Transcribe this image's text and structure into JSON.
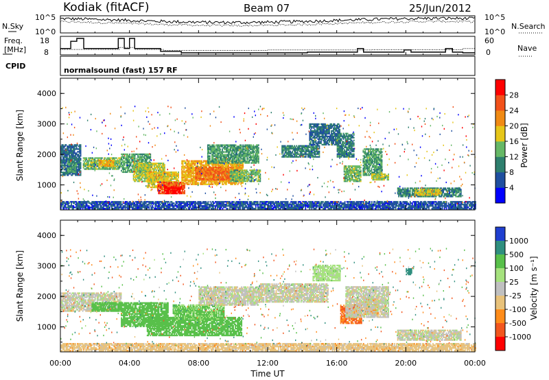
{
  "header": {
    "station": "Kodiak (fitACF)",
    "beam": "Beam 07",
    "date": "25/Jun/2012",
    "cpid_text": "normalsound (fast) 157 RF"
  },
  "strips": {
    "nsky_label": "N.Sky",
    "nsearch_label": "N.Search",
    "noise_ticks_left": [
      "10^5",
      "10^0"
    ],
    "noise_ticks_right": [
      "10^5",
      "10^0"
    ],
    "freq_label_line1": "Freq.",
    "freq_label_line2": "[MHz]",
    "freq_ticks": [
      "18",
      "8"
    ],
    "nave_label": "Nave",
    "nave_ticks": [
      "60",
      "0"
    ],
    "cpid_label": "CPID",
    "freq_steps": [
      [
        0.0,
        11
      ],
      [
        0.6,
        16
      ],
      [
        0.95,
        18
      ],
      [
        1.35,
        11
      ],
      [
        3.35,
        18
      ],
      [
        3.7,
        11
      ],
      [
        4.0,
        18
      ],
      [
        4.3,
        11
      ],
      [
        5.8,
        9
      ],
      [
        7.0,
        8
      ],
      [
        14.3,
        8.5
      ],
      [
        17.2,
        11
      ],
      [
        17.55,
        8.5
      ],
      [
        19.9,
        10
      ],
      [
        20.3,
        8.5
      ],
      [
        21.8,
        8.5
      ],
      [
        22.3,
        11
      ],
      [
        22.7,
        8.5
      ],
      [
        23.3,
        8
      ],
      [
        24.0,
        8
      ]
    ],
    "nave_steps": [
      [
        0.0,
        14
      ],
      [
        3.4,
        22
      ],
      [
        4.3,
        14
      ],
      [
        6.0,
        10
      ],
      [
        12.0,
        12
      ],
      [
        18.0,
        13
      ],
      [
        23.3,
        18
      ],
      [
        24.0,
        18
      ]
    ]
  },
  "power_colorbar": {
    "label": "Power [dB]",
    "ticks": [
      "4",
      "8",
      "12",
      "16",
      "20",
      "24",
      "28"
    ],
    "colors": [
      "#0000ff",
      "#1f4fa0",
      "#2e7f6e",
      "#66b866",
      "#e6c619",
      "#f08a14",
      "#f2511a",
      "#ff0000"
    ]
  },
  "velocity_colorbar": {
    "label": "Velocity [m s⁻¹]",
    "ticks": [
      "1000",
      "500",
      "100",
      "25",
      "-25",
      "-100",
      "-500",
      "-1000"
    ],
    "colors": [
      "#1f3fd0",
      "#2f8f7f",
      "#58c04a",
      "#a6e27e",
      "#c0c0c0",
      "#e8c27b",
      "#ff8c1a",
      "#f2561e",
      "#ff0000"
    ]
  },
  "axes": {
    "ylabel": "Slant Range [km]",
    "yticks": [
      "1000",
      "2000",
      "3000",
      "4000"
    ],
    "xticks": [
      "00:00",
      "04:00",
      "08:00",
      "12:00",
      "16:00",
      "20:00",
      "00:00"
    ],
    "xlabel": "Time UT"
  },
  "chart_data": {
    "type": "heatmap",
    "title": "Kodiak (fitACF) Beam 07 25/Jun/2012",
    "xlabel": "Time UT",
    "ylabel": "Slant Range [km]",
    "xlim": [
      0,
      24
    ],
    "ylim": [
      180,
      4500
    ],
    "panels": [
      {
        "quantity": "Power [dB]",
        "clim": [
          0,
          30
        ],
        "echo_regions": [
          {
            "t": [
              0.0,
              1.2
            ],
            "r": [
              1300,
              2300
            ],
            "v": 8
          },
          {
            "t": [
              0.4,
              0.9
            ],
            "r": [
              1400,
              1800
            ],
            "v": 12
          },
          {
            "t": [
              1.3,
              3.5
            ],
            "r": [
              1500,
              1900
            ],
            "v": 14
          },
          {
            "t": [
              2.2,
              3.1
            ],
            "r": [
              1600,
              1800
            ],
            "v": 20
          },
          {
            "t": [
              3.5,
              5.2
            ],
            "r": [
              1400,
              2000
            ],
            "v": 12
          },
          {
            "t": [
              4.2,
              6.0
            ],
            "r": [
              1100,
              1700
            ],
            "v": 16
          },
          {
            "t": [
              5.0,
              6.8
            ],
            "r": [
              900,
              1400
            ],
            "v": 18
          },
          {
            "t": [
              5.6,
              7.2
            ],
            "r": [
              700,
              1100
            ],
            "v": 26
          },
          {
            "t": [
              6.0,
              7.0
            ],
            "r": [
              700,
              950
            ],
            "v": 30
          },
          {
            "t": [
              7.0,
              10.6
            ],
            "r": [
              1000,
              1800
            ],
            "v": 20
          },
          {
            "t": [
              7.8,
              10.0
            ],
            "r": [
              1150,
              1600
            ],
            "v": 24
          },
          {
            "t": [
              8.5,
              11.5
            ],
            "r": [
              1700,
              2300
            ],
            "v": 12
          },
          {
            "t": [
              9.8,
              11.6
            ],
            "r": [
              1100,
              1500
            ],
            "v": 14
          },
          {
            "t": [
              12.8,
              15.0
            ],
            "r": [
              1900,
              2300
            ],
            "v": 10
          },
          {
            "t": [
              14.4,
              16.2
            ],
            "r": [
              2300,
              3000
            ],
            "v": 8
          },
          {
            "t": [
              16.0,
              17.0
            ],
            "r": [
              1900,
              2700
            ],
            "v": 10
          },
          {
            "t": [
              16.4,
              17.4
            ],
            "r": [
              1100,
              1600
            ],
            "v": 14
          },
          {
            "t": [
              17.5,
              18.6
            ],
            "r": [
              1300,
              2200
            ],
            "v": 12
          },
          {
            "t": [
              18.0,
              19.0
            ],
            "r": [
              1150,
              1350
            ],
            "v": 16
          },
          {
            "t": [
              19.5,
              23.2
            ],
            "r": [
              600,
              900
            ],
            "v": 10
          },
          {
            "t": [
              20.5,
              22.0
            ],
            "r": [
              650,
              850
            ],
            "v": 18
          },
          {
            "t": [
              0.0,
              24.0
            ],
            "r": [
              200,
              450
            ],
            "v": 6
          }
        ]
      },
      {
        "quantity": "Velocity [m s⁻¹]",
        "clim": [
          -1000,
          1000
        ],
        "echo_regions": [
          {
            "t": [
              0.0,
              3.5
            ],
            "r": [
              1500,
              2100
            ],
            "v": 0
          },
          {
            "t": [
              1.8,
              3.6
            ],
            "r": [
              1500,
              1800
            ],
            "v": 200
          },
          {
            "t": [
              3.5,
              6.2
            ],
            "r": [
              1000,
              1800
            ],
            "v": 150
          },
          {
            "t": [
              5.0,
              10.5
            ],
            "r": [
              700,
              1300
            ],
            "v": 250
          },
          {
            "t": [
              6.5,
              9.5
            ],
            "r": [
              1200,
              1700
            ],
            "v": 120
          },
          {
            "t": [
              8.0,
              11.5
            ],
            "r": [
              1700,
              2300
            ],
            "v": 0
          },
          {
            "t": [
              11.5,
              15.5
            ],
            "r": [
              1800,
              2400
            ],
            "v": 0
          },
          {
            "t": [
              14.6,
              16.2
            ],
            "r": [
              2500,
              3000
            ],
            "v": 60
          },
          {
            "t": [
              16.2,
              17.4
            ],
            "r": [
              1100,
              1700
            ],
            "v": -500
          },
          {
            "t": [
              17.6,
              18.4
            ],
            "r": [
              1400,
              1900
            ],
            "v": -400
          },
          {
            "t": [
              16.5,
              19.0
            ],
            "r": [
              1300,
              2300
            ],
            "v": 0
          },
          {
            "t": [
              20.0,
              20.3
            ],
            "r": [
              2700,
              2900
            ],
            "v": 900
          },
          {
            "t": [
              19.5,
              23.2
            ],
            "r": [
              550,
              900
            ],
            "v": 0
          },
          {
            "t": [
              0.0,
              24.0
            ],
            "r": [
              200,
              450
            ],
            "v": -60
          }
        ]
      }
    ]
  }
}
